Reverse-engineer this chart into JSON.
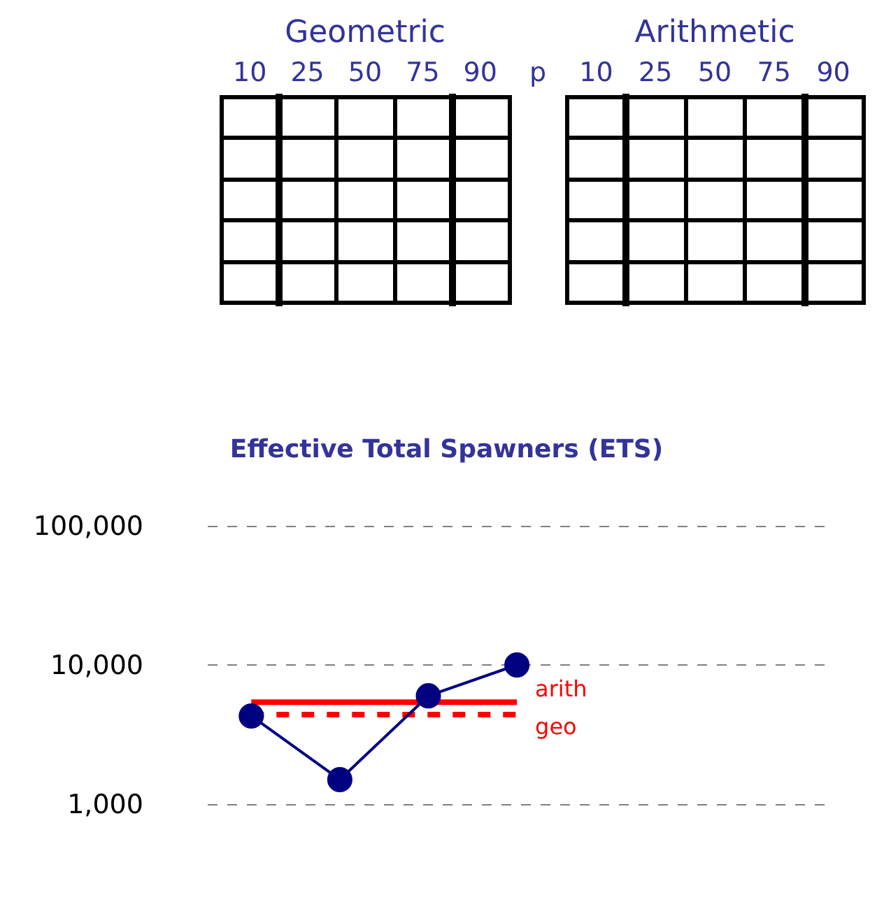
{
  "chart_data": [
    {
      "type": "other",
      "title": "Geometric",
      "xlabel": "p",
      "categories": [
        "10",
        "25",
        "50",
        "75",
        "90"
      ]
    },
    {
      "type": "other",
      "title": "Arithmetic",
      "categories": [
        "10",
        "25",
        "50",
        "75",
        "90"
      ]
    },
    {
      "type": "line",
      "title": "Effective Total Spawners (ETS)",
      "categories": [
        null,
        null,
        null,
        null,
        null,
        null,
        null
      ],
      "series": [
        {
          "color": "#000080",
          "values": [
            4300,
            1500,
            6000,
            10000,
            null,
            null,
            null
          ]
        }
      ],
      "log": "y",
      "ylim": [
        1000,
        100000
      ],
      "yticks": [
        {
          "value": 1000,
          "label": "1,000"
        },
        {
          "value": 10000,
          "label": "10,000"
        },
        {
          "value": 100000,
          "label": "100,000"
        }
      ],
      "grid": "y",
      "marker": "circle",
      "tick_labels": "y",
      "ref_lines": [
        {
          "axis": "y",
          "value": 5400,
          "label": "arith",
          "color": "#ff0000",
          "line_style": "solid"
        },
        {
          "axis": "y",
          "value": 4400,
          "label": "geo",
          "color": "#ff0000",
          "line_style": "dashed"
        }
      ]
    }
  ]
}
